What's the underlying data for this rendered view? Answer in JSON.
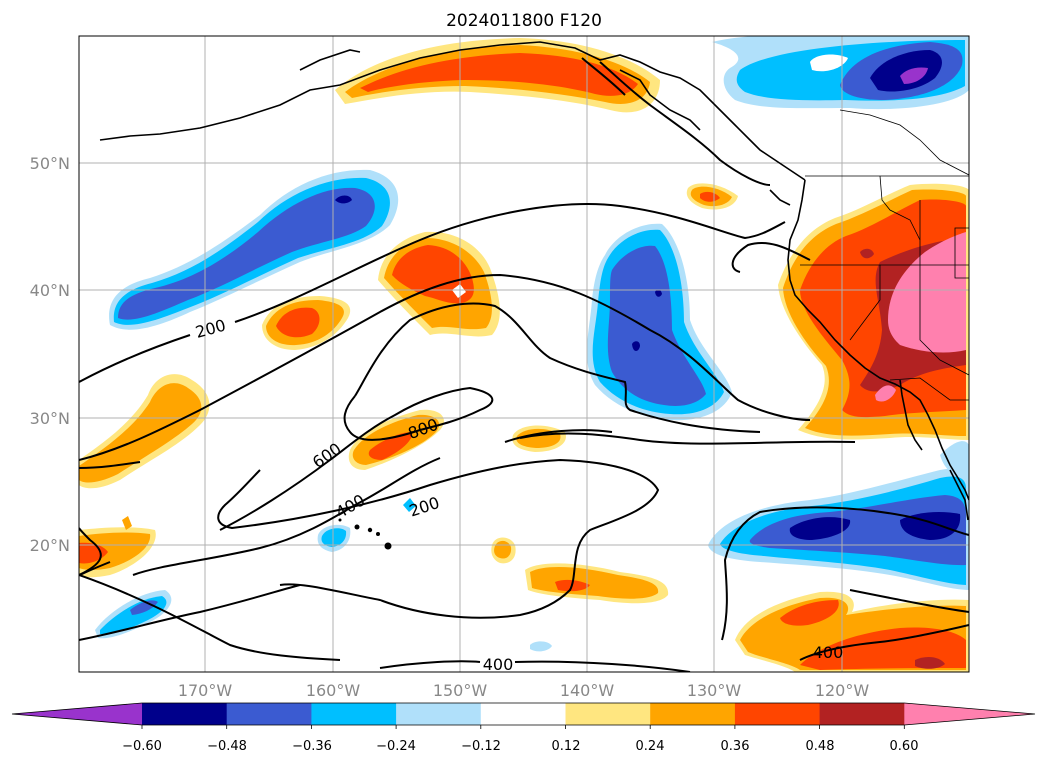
{
  "title": "2024011800 F120",
  "latitude_labels": [
    "50°N",
    "40°N",
    "30°N",
    "20°N"
  ],
  "longitude_labels": [
    "170°W",
    "160°W",
    "150°W",
    "140°W",
    "130°W",
    "120°W"
  ],
  "contour_labels": [
    "200",
    "600",
    "400",
    "800",
    "200",
    "400",
    "400"
  ],
  "colorbar": {
    "tick_labels": [
      "−0.60",
      "−0.48",
      "−0.36",
      "−0.24",
      "−0.12",
      "0.12",
      "0.24",
      "0.36",
      "0.48",
      "0.60"
    ],
    "colors": [
      "#9933cc",
      "#00008b",
      "#3b5bd1",
      "#00bfff",
      "#b0e0fa",
      "#ffffff",
      "#ffe680",
      "#ffa500",
      "#ff4500",
      "#b22222",
      "#ff80ae"
    ]
  },
  "colors": {
    "purple": "#9933cc",
    "navy": "#00008b",
    "blue": "#3b5bd1",
    "cyan": "#00bfff",
    "lightblue": "#b0e0fa",
    "yellow": "#ffe680",
    "orange": "#ffa500",
    "redorange": "#ff4500",
    "firebrick": "#b22222",
    "pink": "#ff80ae"
  }
}
